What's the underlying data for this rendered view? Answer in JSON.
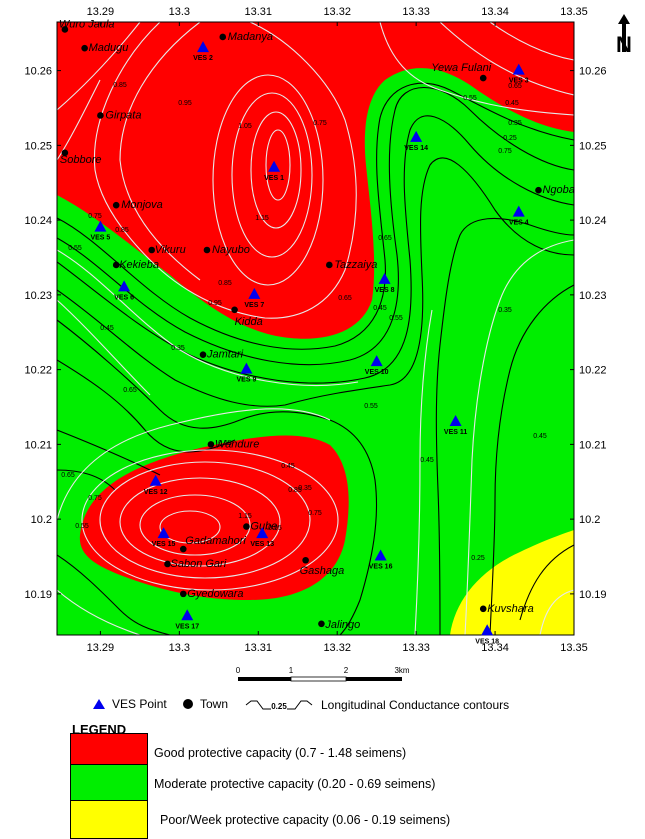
{
  "north_arrow": {
    "label": "N"
  },
  "axes": {
    "x_ticks": [
      "13.29",
      "13.3",
      "13.31",
      "13.32",
      "13.33",
      "13.34",
      "13.35"
    ],
    "y_ticks": [
      "10.26",
      "10.25",
      "10.24",
      "10.23",
      "10.22",
      "10.21",
      "10.2",
      "10.19"
    ],
    "lon_range": [
      13.2845,
      13.35
    ],
    "lat_range": [
      10.1845,
      10.2665
    ]
  },
  "zones": [
    {
      "name": "good",
      "color": "#ff0000"
    },
    {
      "name": "moderate",
      "color": "#00ee00"
    },
    {
      "name": "poor",
      "color": "#ffff00"
    }
  ],
  "towns": [
    {
      "name": "Wuro Jaula",
      "lon": 13.2855,
      "lat": 10.2655,
      "dx": -6,
      "dy": -2
    },
    {
      "name": "Madugu",
      "lon": 13.288,
      "lat": 10.263,
      "dx": 4,
      "dy": 3
    },
    {
      "name": "Madanya",
      "lon": 13.3055,
      "lat": 10.2645,
      "dx": 5,
      "dy": 3
    },
    {
      "name": "Girpata",
      "lon": 13.29,
      "lat": 10.254,
      "dx": 5,
      "dy": 3
    },
    {
      "name": "Sobbore",
      "lon": 13.2855,
      "lat": 10.249,
      "dx": -5,
      "dy": 10
    },
    {
      "name": "Monjova",
      "lon": 13.292,
      "lat": 10.242,
      "dx": 5,
      "dy": 3
    },
    {
      "name": "Vikuru",
      "lon": 13.2965,
      "lat": 10.236,
      "dx": 3,
      "dy": 3
    },
    {
      "name": "Nayubo",
      "lon": 13.3035,
      "lat": 10.236,
      "dx": 5,
      "dy": 3
    },
    {
      "name": "Kekieba",
      "lon": 13.292,
      "lat": 10.234,
      "dx": 3,
      "dy": 3
    },
    {
      "name": "Tazzaiya",
      "lon": 13.319,
      "lat": 10.234,
      "dx": 5,
      "dy": 3
    },
    {
      "name": "Kidda",
      "lon": 13.307,
      "lat": 10.228,
      "dx": 0,
      "dy": 15
    },
    {
      "name": "Jamtari",
      "lon": 13.303,
      "lat": 10.222,
      "dx": 4,
      "dy": 3
    },
    {
      "name": "Wandure",
      "lon": 13.304,
      "lat": 10.21,
      "dx": 4,
      "dy": 3
    },
    {
      "name": "Yewa Fulani",
      "lon": 13.3385,
      "lat": 10.259,
      "dx": -52,
      "dy": -7
    },
    {
      "name": "Ngoba",
      "lon": 13.3455,
      "lat": 10.244,
      "dx": 4,
      "dy": 3
    },
    {
      "name": "Gube",
      "lon": 13.3085,
      "lat": 10.199,
      "dx": 4,
      "dy": 3
    },
    {
      "name": "Gadamahori",
      "lon": 13.3005,
      "lat": 10.196,
      "dx": 2,
      "dy": -5
    },
    {
      "name": "Sabon Gari",
      "lon": 13.2985,
      "lat": 10.194,
      "dx": 3,
      "dy": 3
    },
    {
      "name": "Gashaga",
      "lon": 13.316,
      "lat": 10.1945,
      "dx": -6,
      "dy": 14
    },
    {
      "name": "Gyedowara",
      "lon": 13.3005,
      "lat": 10.19,
      "dx": 4,
      "dy": 3
    },
    {
      "name": "Jalingo",
      "lon": 13.318,
      "lat": 10.186,
      "dx": 4,
      "dy": 4
    },
    {
      "name": "Kuvshara",
      "lon": 13.3385,
      "lat": 10.188,
      "dx": 4,
      "dy": 3
    }
  ],
  "ves_points": [
    {
      "label": "VES 1",
      "lon": 13.312,
      "lat": 10.247
    },
    {
      "label": "VES 2",
      "lon": 13.303,
      "lat": 10.263
    },
    {
      "label": "VES 3",
      "lon": 13.343,
      "lat": 10.26
    },
    {
      "label": "VES 4",
      "lon": 13.343,
      "lat": 10.241
    },
    {
      "label": "VES 5",
      "lon": 13.29,
      "lat": 10.239
    },
    {
      "label": "VES 6",
      "lon": 13.293,
      "lat": 10.231
    },
    {
      "label": "VES 7",
      "lon": 13.3095,
      "lat": 10.23
    },
    {
      "label": "VES 8",
      "lon": 13.326,
      "lat": 10.232
    },
    {
      "label": "VES 9",
      "lon": 13.3085,
      "lat": 10.22
    },
    {
      "label": "VES 10",
      "lon": 13.325,
      "lat": 10.221
    },
    {
      "label": "VES 11",
      "lon": 13.335,
      "lat": 10.213
    },
    {
      "label": "VES 12",
      "lon": 13.297,
      "lat": 10.205
    },
    {
      "label": "VES 13",
      "lon": 13.3105,
      "lat": 10.198
    },
    {
      "label": "VES 14",
      "lon": 13.33,
      "lat": 10.251
    },
    {
      "label": "VES 15",
      "lon": 13.298,
      "lat": 10.198
    },
    {
      "label": "VES 16",
      "lon": 13.3255,
      "lat": 10.195
    },
    {
      "label": "VES 17",
      "lon": 13.301,
      "lat": 10.187
    },
    {
      "label": "VES 18",
      "lon": 13.339,
      "lat": 10.185
    }
  ],
  "contour_labels": [
    "0.85",
    "0.95",
    "1.05",
    "1.15",
    "0.75",
    "0.65",
    "0.55",
    "0.45",
    "0.35",
    "0.25",
    "0.75",
    "0.65",
    "0.55",
    "0.45",
    "0.35",
    "0.85",
    "0.75",
    "0.65",
    "0.55",
    "0.45",
    "0.35",
    "0.65",
    "0.45",
    "0.55",
    "0.75",
    "0.85",
    "0.95",
    "1.15",
    "0.75",
    "0.65",
    "0.55",
    "0.45",
    "0.35",
    "0.25",
    "0.95",
    "0.85",
    "0.55",
    "0.45"
  ],
  "scale_bar": {
    "labels": [
      "0",
      "1",
      "2",
      "3km"
    ]
  },
  "key": {
    "ves": "VES Point",
    "town": "Town",
    "contour_value": "0.25",
    "contour": "Longitudinal Conductance contours"
  },
  "legend": {
    "title": "LEGEND",
    "items": [
      {
        "label": "Good protective capacity (0.7 - 1.48 seimens)",
        "color": "#ff0000"
      },
      {
        "label": "Moderate protective capacity (0.20 - 0.69 seimens)",
        "color": "#00ee00"
      },
      {
        "label": "Poor/Week protective capacity (0.06 - 0.19 seimens)",
        "color": "#ffff00"
      }
    ]
  }
}
